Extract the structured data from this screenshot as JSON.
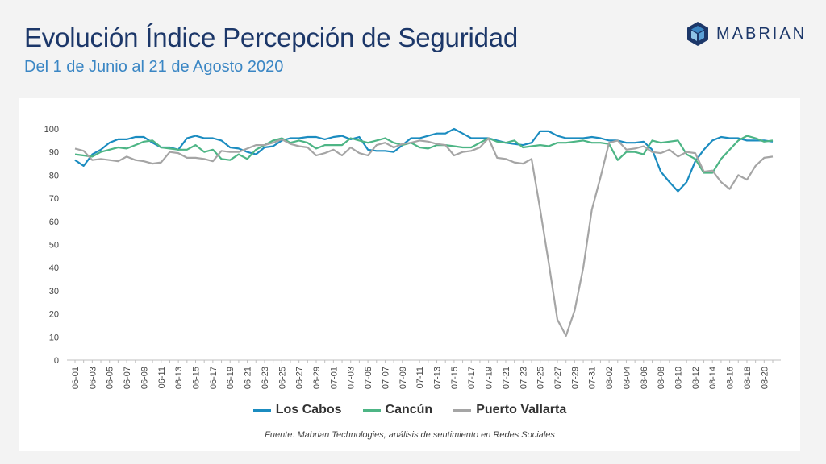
{
  "header": {
    "title": "Evolución Índice Percepción de Seguridad",
    "subtitle": "Del 1 de Junio al 21 de Agosto 2020"
  },
  "logo": {
    "text": "MABRIAN",
    "icon": "hexagon-cube-icon"
  },
  "colors": {
    "los_cabos": "#1b8cc0",
    "cancun": "#4db585",
    "puerto_vallarta": "#a5a5a5"
  },
  "source": "Fuente: Mabrian Technologies, análisis de sentimiento en Redes Sociales",
  "chart_data": {
    "type": "line",
    "ylim": [
      0,
      100
    ],
    "yticks": [
      0,
      10,
      20,
      30,
      40,
      50,
      60,
      70,
      80,
      90,
      100
    ],
    "grid": false,
    "legend_position": "bottom",
    "x": [
      "06-01",
      "06-02",
      "06-03",
      "06-04",
      "06-05",
      "06-06",
      "06-07",
      "06-08",
      "06-09",
      "06-10",
      "06-11",
      "06-12",
      "06-13",
      "06-14",
      "06-15",
      "06-16",
      "06-17",
      "06-18",
      "06-19",
      "06-20",
      "06-21",
      "06-22",
      "06-23",
      "06-24",
      "06-25",
      "06-26",
      "06-27",
      "06-28",
      "06-29",
      "06-30",
      "07-01",
      "07-02",
      "07-03",
      "07-04",
      "07-05",
      "07-06",
      "07-07",
      "07-08",
      "07-09",
      "07-10",
      "07-11",
      "07-12",
      "07-13",
      "07-14",
      "07-15",
      "07-16",
      "07-17",
      "07-18",
      "07-19",
      "07-20",
      "07-21",
      "07-22",
      "07-23",
      "07-24",
      "07-25",
      "07-26",
      "07-27",
      "07-28",
      "07-29",
      "07-30",
      "07-31",
      "08-01",
      "08-02",
      "08-03",
      "08-04",
      "08-05",
      "08-06",
      "08-07",
      "08-08",
      "08-09",
      "08-10",
      "08-11",
      "08-12",
      "08-13",
      "08-14",
      "08-15",
      "08-16",
      "08-17",
      "08-18",
      "08-19",
      "08-20",
      "08-21"
    ],
    "xtick_labels": [
      "06-01",
      "06-03",
      "06-05",
      "06-07",
      "06-09",
      "06-11",
      "06-13",
      "06-15",
      "06-17",
      "06-19",
      "06-21",
      "06-23",
      "06-25",
      "06-27",
      "06-29",
      "07-01",
      "07-03",
      "07-05",
      "07-07",
      "07-09",
      "07-11",
      "07-13",
      "07-15",
      "07-17",
      "07-19",
      "07-21",
      "07-23",
      "07-25",
      "07-27",
      "07-29",
      "07-31",
      "08-02",
      "08-04",
      "08-06",
      "08-08",
      "08-10",
      "08-12",
      "08-14",
      "08-16",
      "08-18",
      "08-20"
    ],
    "series": [
      {
        "name": "Los Cabos",
        "color_key": "los_cabos",
        "values": [
          86.5,
          84,
          89,
          91,
          94,
          95.5,
          95.5,
          96.5,
          96.5,
          94,
          92,
          92,
          91,
          96,
          97,
          96,
          96,
          95,
          92,
          91.5,
          90,
          89,
          92,
          92.5,
          95,
          96,
          96,
          96.5,
          96.5,
          95.5,
          96.5,
          97,
          95.5,
          96.5,
          91,
          90.5,
          90.5,
          90,
          93,
          96,
          96,
          97,
          98,
          98,
          100,
          98,
          96,
          96,
          96,
          95,
          94,
          93.5,
          93,
          94,
          99,
          99,
          97,
          96,
          96,
          96,
          96.5,
          96,
          95,
          95,
          94,
          94,
          94.5,
          91,
          81.5,
          77,
          73,
          77,
          86,
          91,
          95,
          96.5,
          96,
          96,
          95,
          95,
          95,
          94.5
        ]
      },
      {
        "name": "Cancún",
        "color_key": "cancun",
        "values": [
          89,
          88.5,
          88,
          90,
          91,
          92,
          91.5,
          93,
          94.5,
          95,
          92,
          91.5,
          91,
          91,
          93,
          90,
          91,
          87,
          86.5,
          89,
          87,
          91,
          93,
          95,
          96,
          94,
          95,
          94,
          91.5,
          93,
          93,
          93,
          96,
          95,
          94,
          95,
          96,
          94,
          93,
          94,
          92,
          91.5,
          93,
          93,
          92.5,
          92,
          92,
          94,
          96,
          94.5,
          94,
          95,
          92,
          92.5,
          93,
          92.5,
          94,
          94,
          94.5,
          95,
          94,
          94,
          93.5,
          86.5,
          90,
          90,
          89,
          95,
          94,
          94.5,
          95,
          89,
          87,
          81,
          81,
          87,
          91,
          95,
          97,
          96,
          94.5,
          95
        ]
      },
      {
        "name": "Puerto Vallarta",
        "color_key": "puerto_vallarta",
        "values": [
          91.5,
          90.5,
          86.5,
          87,
          86.5,
          86,
          88,
          86.5,
          86,
          85,
          85.5,
          90,
          89.5,
          87.5,
          87.5,
          87,
          86,
          90.5,
          90,
          90,
          91.5,
          93,
          93,
          94,
          95.5,
          93.5,
          92.5,
          92,
          88.5,
          89.5,
          91,
          88.5,
          92,
          89.5,
          88.5,
          93,
          94,
          92,
          93.5,
          94,
          95,
          94.5,
          93.5,
          93,
          88.5,
          90,
          90.5,
          92,
          96,
          87.5,
          87,
          85.5,
          85,
          87,
          65,
          42,
          17.5,
          10.5,
          21.5,
          40,
          65,
          79,
          94,
          95,
          91,
          91.5,
          92.5,
          90,
          89.5,
          91,
          88,
          90,
          89.5,
          81.5,
          82,
          77,
          74,
          80,
          78,
          84,
          87.5,
          88
        ]
      }
    ]
  }
}
